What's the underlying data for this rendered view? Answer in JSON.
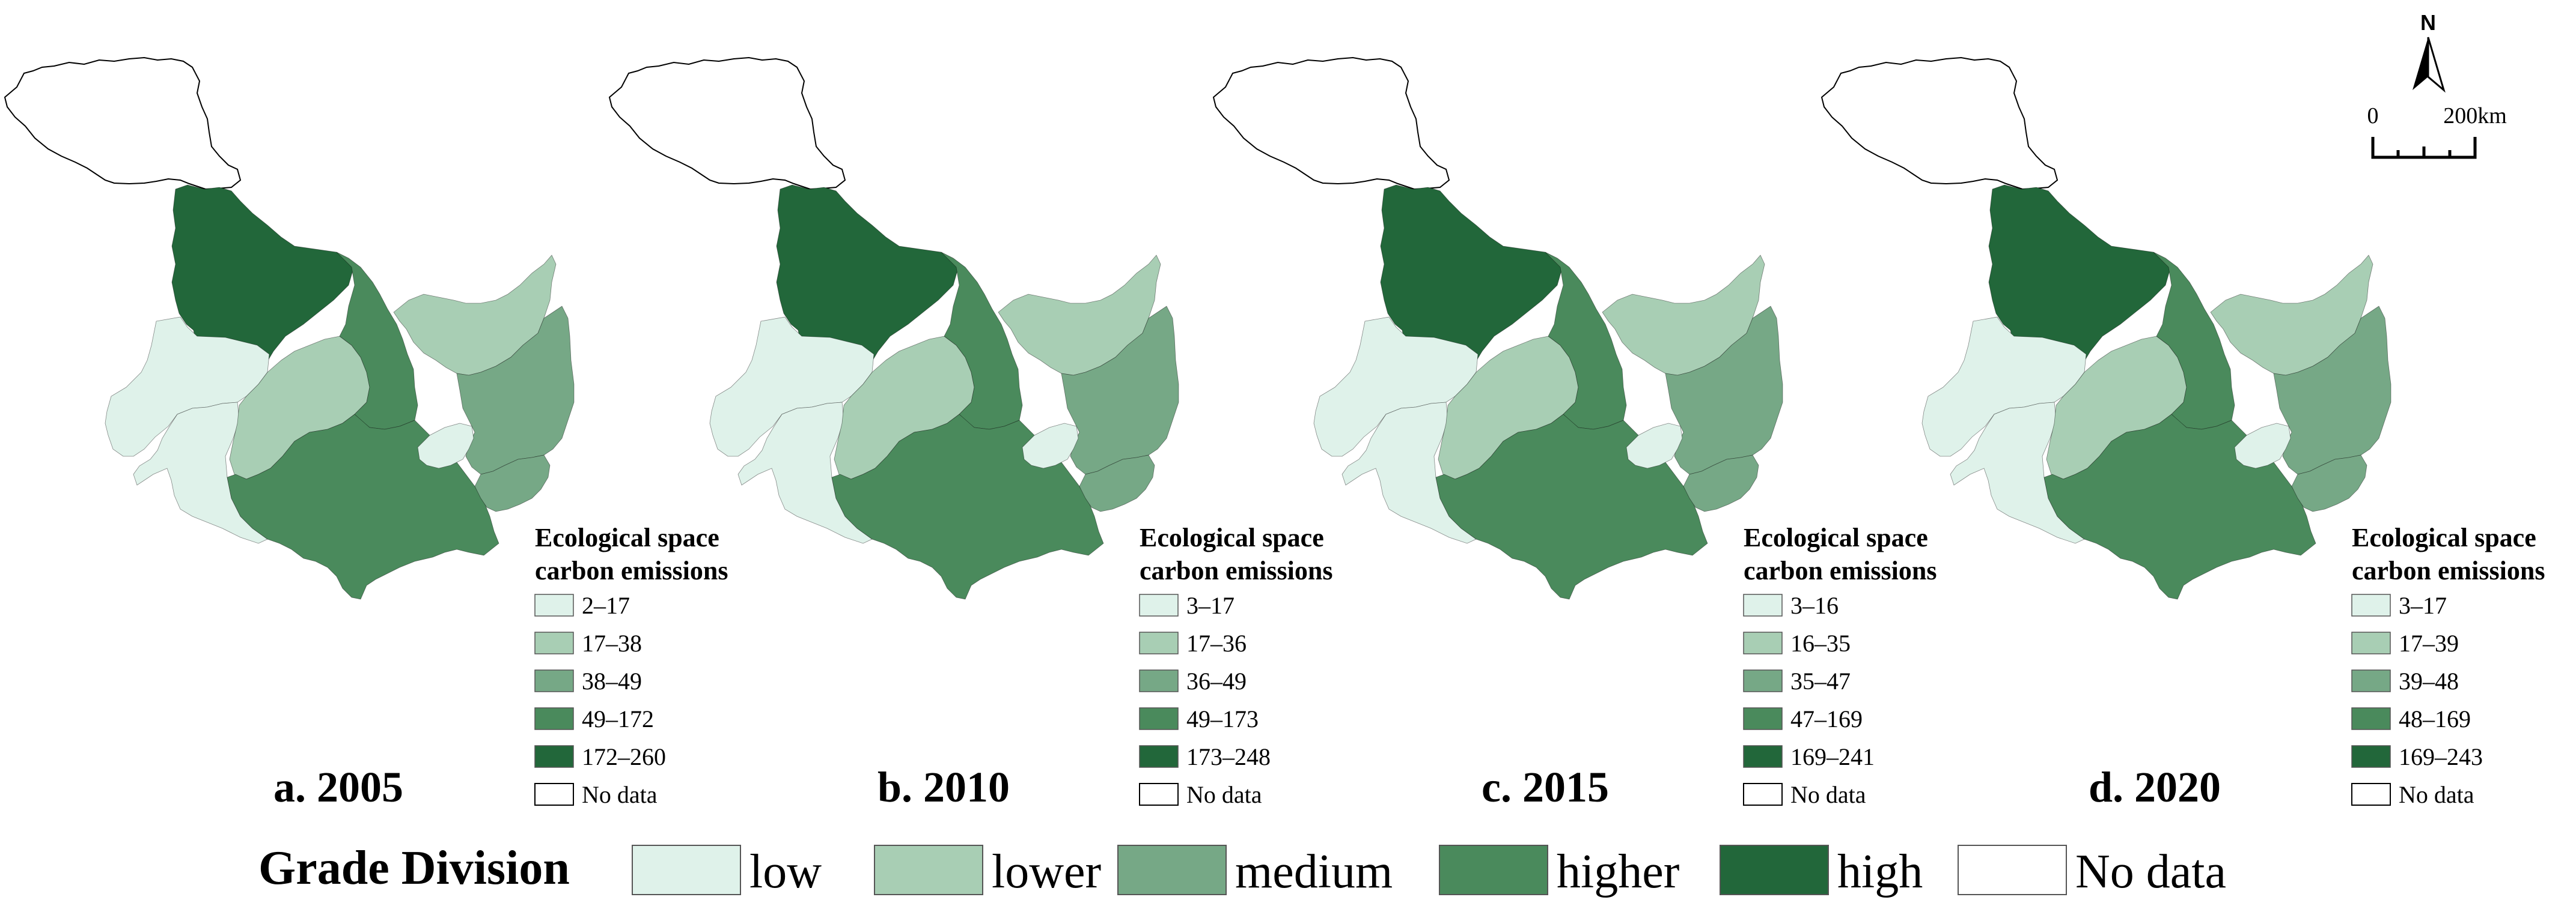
{
  "panels": [
    {
      "label": "a. 2005",
      "legend_title_line1": "Ecological space",
      "legend_title_line2": "carbon emissions",
      "classes": [
        "2–17",
        "17–38",
        "38–49",
        "49–172",
        "172–260"
      ],
      "no_data": "No data"
    },
    {
      "label": "b. 2010",
      "legend_title_line1": "Ecological space",
      "legend_title_line2": "carbon emissions",
      "classes": [
        "3–17",
        "17–36",
        "36–49",
        "49–173",
        "173–248"
      ],
      "no_data": "No data"
    },
    {
      "label": "c. 2015",
      "legend_title_line1": "Ecological space",
      "legend_title_line2": "carbon emissions",
      "classes": [
        "3–16",
        "16–35",
        "35–47",
        "47–169",
        "169–241"
      ],
      "no_data": "No data"
    },
    {
      "label": "d. 2020",
      "legend_title_line1": "Ecological space",
      "legend_title_line2": "carbon emissions",
      "classes": [
        "3–17",
        "17–39",
        "39–48",
        "48–169",
        "169–243"
      ],
      "no_data": "No data"
    }
  ],
  "region_grades_by_panel": [
    {
      "west": "low",
      "southwest": "low",
      "northwest_forest": "high",
      "center": "lower",
      "center_north": "higher",
      "south": "higher",
      "east_north": "lower",
      "east_center": "medium",
      "east_small": "low",
      "east_south": "medium",
      "far_north": "no data"
    },
    {
      "west": "low",
      "southwest": "low",
      "northwest_forest": "high",
      "center": "lower",
      "center_north": "higher",
      "south": "higher",
      "east_north": "lower",
      "east_center": "medium",
      "east_small": "low",
      "east_south": "medium",
      "far_north": "no data"
    },
    {
      "west": "low",
      "southwest": "low",
      "northwest_forest": "high",
      "center": "lower",
      "center_north": "higher",
      "south": "higher",
      "east_north": "lower",
      "east_center": "medium",
      "east_small": "low",
      "east_south": "medium",
      "far_north": "no data"
    },
    {
      "west": "low",
      "southwest": "low",
      "northwest_forest": "high",
      "center": "lower",
      "center_north": "higher",
      "south": "higher",
      "east_north": "lower",
      "east_center": "medium",
      "east_small": "low",
      "east_south": "medium",
      "far_north": "no data"
    }
  ],
  "grade_division": {
    "title": "Grade Division",
    "items": [
      {
        "label": "low",
        "color": "#dff2ea"
      },
      {
        "label": "lower",
        "color": "#a8ceb4"
      },
      {
        "label": "medium",
        "color": "#76a886"
      },
      {
        "label": "higher",
        "color": "#4a8a5c"
      },
      {
        "label": "high",
        "color": "#22673a"
      },
      {
        "label": "No data",
        "color": "#ffffff"
      }
    ]
  },
  "scale_bar": {
    "start_label": "0",
    "end_label": "200km"
  },
  "north_arrow": {
    "label": "N",
    "icon": "north-arrow-icon"
  }
}
